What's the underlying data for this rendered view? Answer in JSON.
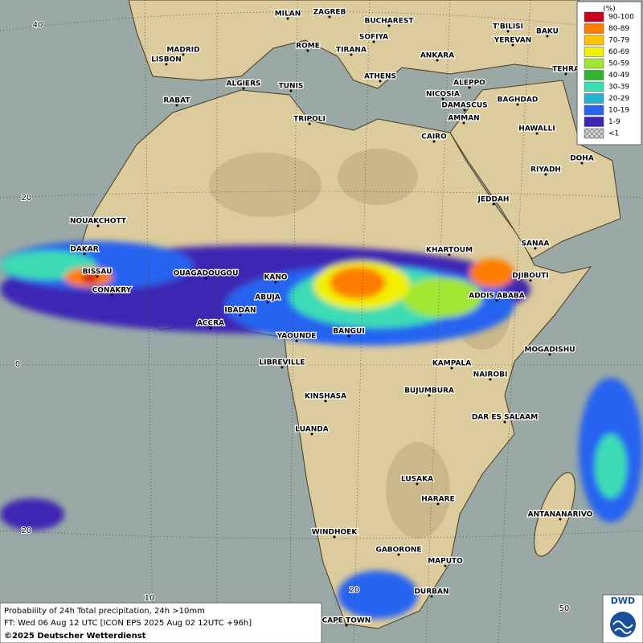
{
  "legend": {
    "title": "(%)",
    "entries": [
      {
        "label": "90-100",
        "color": "#c8001e"
      },
      {
        "label": "80-89",
        "color": "#ff7d00"
      },
      {
        "label": "70-79",
        "color": "#ffc300"
      },
      {
        "label": "60-69",
        "color": "#f0f000"
      },
      {
        "label": "50-59",
        "color": "#a0e632"
      },
      {
        "label": "40-49",
        "color": "#32b432"
      },
      {
        "label": "30-39",
        "color": "#3cdcb4"
      },
      {
        "label": "20-29",
        "color": "#1eb4d2"
      },
      {
        "label": "10-19",
        "color": "#2864f0"
      },
      {
        "label": "1-9",
        "color": "#3c28b4"
      },
      {
        "label": "<1",
        "color": "#b4b4b4"
      }
    ]
  },
  "cities": [
    "MILAN",
    "ZAGREB",
    "BUCHAREST",
    "SOFIYA",
    "ROME",
    "TIRANA",
    "ANKARA",
    "T'BILISI",
    "YEREVAN",
    "BAKU",
    "MADRID",
    "LISBON",
    "ALGIERS",
    "TUNIS",
    "ATHENS",
    "ALEPPO",
    "NICOSIA",
    "DAMASCUS",
    "AMMAN",
    "BAGHDAD",
    "TEHRA",
    "RABAT",
    "TRIPOLI",
    "CAIRO",
    "HAWALLI",
    "DOHA",
    "RIYADH",
    "JEDDAH",
    "SANAA",
    "NOUAKCHOTT",
    "DAKAR",
    "BISSAU",
    "CONAKRY",
    "OUAGADOUGOU",
    "KANO",
    "ABUJA",
    "IBADAN",
    "ACCRA",
    "YAOUNDE",
    "BANGUI",
    "KHARTOUM",
    "DJIBOUTI",
    "ADDIS ABABA",
    "MOGADISHU",
    "KAMPALA",
    "NAIROBI",
    "LIBREVILLE",
    "KINSHASA",
    "BUJUMBURA",
    "DAR ES SALAAM",
    "LUANDA",
    "LUSAKA",
    "HARARE",
    "ANTANANARIVO",
    "WINDHOEK",
    "GABORONE",
    "MAPUTO",
    "DURBAN",
    "CAPE TOWN"
  ],
  "grid_labels": [
    "40",
    "20",
    "0",
    "20",
    "10",
    "20",
    "50"
  ],
  "caption": {
    "line1": "Probability of 24h Total precipitation, 24h >10mm",
    "line2": "FT: Wed 06 Aug 12 UTC [ICON EPS 2025 Aug 02 12UTC +96h]",
    "line3": "©2025 Deutscher Wetterdienst"
  },
  "logo": "DWD"
}
